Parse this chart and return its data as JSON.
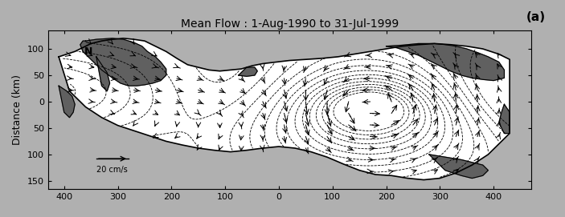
{
  "title": "Mean Flow : 1-Aug-1990 to 31-Jul-1999",
  "panel_label": "(a)",
  "ylabel": "Distance (km)",
  "xlim": [
    -430,
    470
  ],
  "ylim": [
    165,
    -135
  ],
  "xticks": [
    -400,
    -300,
    -200,
    -100,
    0,
    100,
    200,
    300,
    400
  ],
  "yticks": [
    -100,
    -50,
    0,
    50,
    100,
    150
  ],
  "ytick_labels": [
    "100",
    "50",
    "0",
    "50",
    "100",
    "150"
  ],
  "bg_color": "#b0b0b0",
  "sea_color": "#ffffff",
  "land_color": "#606060",
  "title_fontsize": 10,
  "label_fontsize": 9,
  "tick_fontsize": 8,
  "scale_label": "20 cm/s",
  "north_label": "N"
}
